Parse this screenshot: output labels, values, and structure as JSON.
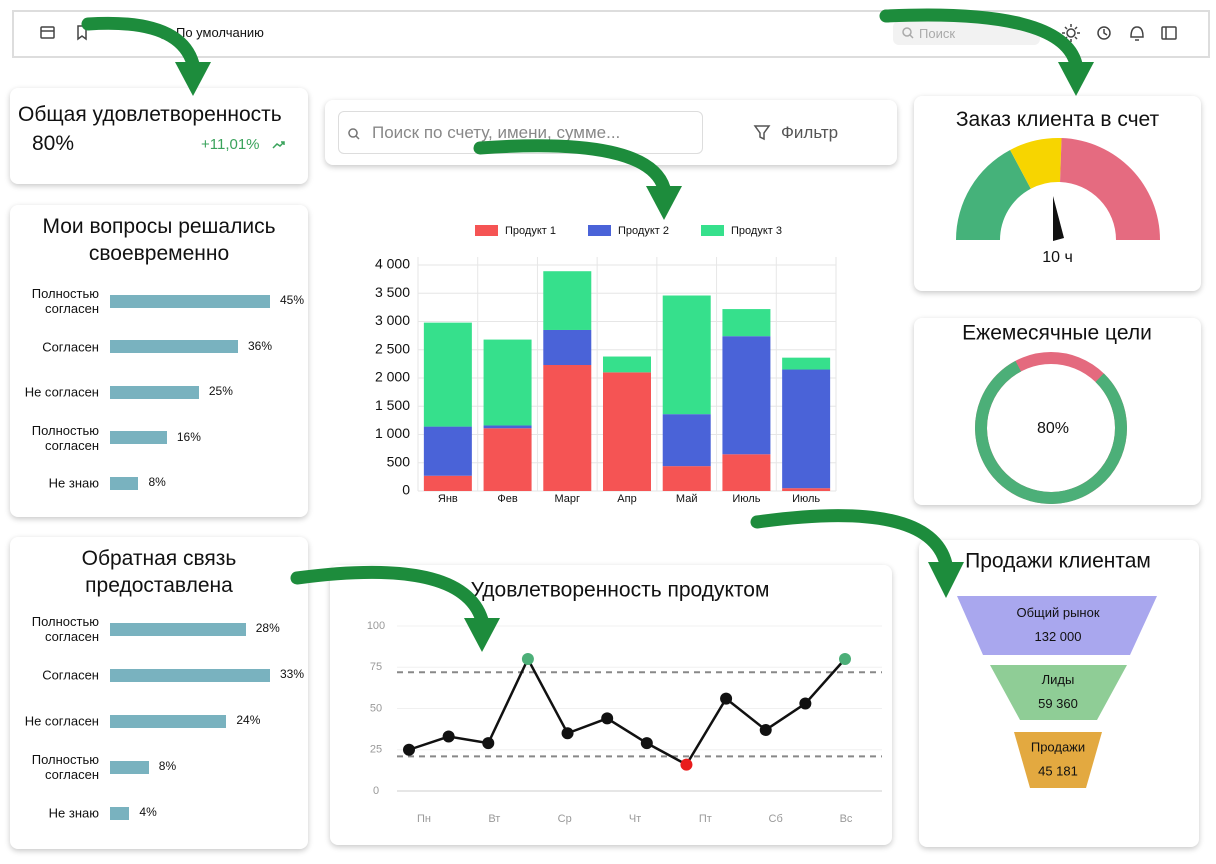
{
  "topbar": {
    "breadcrumb": "По умолчанию",
    "search": "Поиск"
  },
  "satisfaction": {
    "title": "Общая удовлетворенность",
    "value": "80%",
    "change": "+11,01%"
  },
  "search": {
    "placeholder": "Поиск по счету, имени, сумме...",
    "filter": "Фильтр"
  },
  "order_card": {
    "title": "Заказ клиента в счет",
    "label": "10 ч"
  },
  "chart_data": [
    {
      "type": "hbar",
      "title": "Мои вопросы решались своевременно",
      "categories": [
        "Полностью согласен",
        "Согласен",
        "Не согласен",
        "Полностью согласен",
        "Не знаю"
      ],
      "values": [
        45,
        36,
        25,
        16,
        8
      ],
      "value_labels": [
        "45%",
        "36%",
        "25%",
        "16%",
        "8%"
      ],
      "color": "#79b2bf"
    },
    {
      "type": "hbar",
      "title": "Обратная связь предоставлена",
      "categories": [
        "Полностью согласен",
        "Согласен",
        "Не согласен",
        "Полностью согласен",
        "Не знаю"
      ],
      "values": [
        28,
        33,
        24,
        8,
        4
      ],
      "value_labels": [
        "28%",
        "33%",
        "24%",
        "8%",
        "4%"
      ],
      "color": "#79b2bf"
    },
    {
      "type": "stacked_bar",
      "categories": [
        "Янв",
        "Фев",
        "Марг",
        "Апр",
        "Май",
        "Июль",
        "Июль"
      ],
      "series": [
        {
          "name": "Продукт 1",
          "color": "#f55454",
          "values": [
            270,
            1110,
            2230,
            2100,
            440,
            650,
            50
          ]
        },
        {
          "name": "Продукт 2",
          "color": "#4a63d8",
          "values": [
            870,
            50,
            620,
            0,
            920,
            2090,
            2100
          ]
        },
        {
          "name": "Продукт 3",
          "color": "#36e08c",
          "values": [
            1840,
            1520,
            1040,
            280,
            2100,
            480,
            210
          ]
        }
      ],
      "ylim": [
        0,
        4000
      ],
      "yticks": [
        0,
        500,
        {
          "value": 1000,
          "label": "1 000"
        },
        {
          "value": 1500,
          "label": "1 500"
        },
        {
          "value": 2000,
          "label": "2 000"
        },
        {
          "value": 2500,
          "label": "2 500"
        },
        {
          "value": 3000,
          "label": "3 000"
        },
        {
          "value": 3500,
          "label": "3 500"
        },
        {
          "value": 4000,
          "label": "4 000"
        }
      ],
      "grid": true,
      "legend": "top"
    },
    {
      "type": "donut",
      "title": "Ежемесячные цели",
      "value": 80,
      "value_label": "80%",
      "color": "#4caf78",
      "rest_color": "#e46a7e"
    },
    {
      "type": "line",
      "title": "Удовлетворенность продуктом",
      "x_labels": [
        "Пн",
        "Вт",
        "Ср",
        "Чт",
        "Пт",
        "Сб",
        "Вс"
      ],
      "values": [
        25,
        33,
        29,
        80,
        35,
        44,
        29,
        16,
        56,
        37,
        53,
        80
      ],
      "ylim": [
        0,
        100
      ],
      "yticks": [
        0,
        25,
        50,
        75,
        100
      ],
      "reference_lines": [
        72,
        21
      ],
      "color": "#111111",
      "max_color": "#4caf78",
      "min_color": "#e81c1c",
      "grid": true
    },
    {
      "type": "funnel",
      "title": "Продажи клиентам",
      "categories": [
        "Общий рынок",
        "Лиды",
        "Продажи"
      ],
      "values": [
        132000,
        59360,
        45181
      ],
      "value_labels": [
        "132 000",
        "59 360",
        "45 181"
      ],
      "colors": [
        "#a9a7ee",
        "#8fcd96",
        "#e3a940"
      ]
    }
  ]
}
